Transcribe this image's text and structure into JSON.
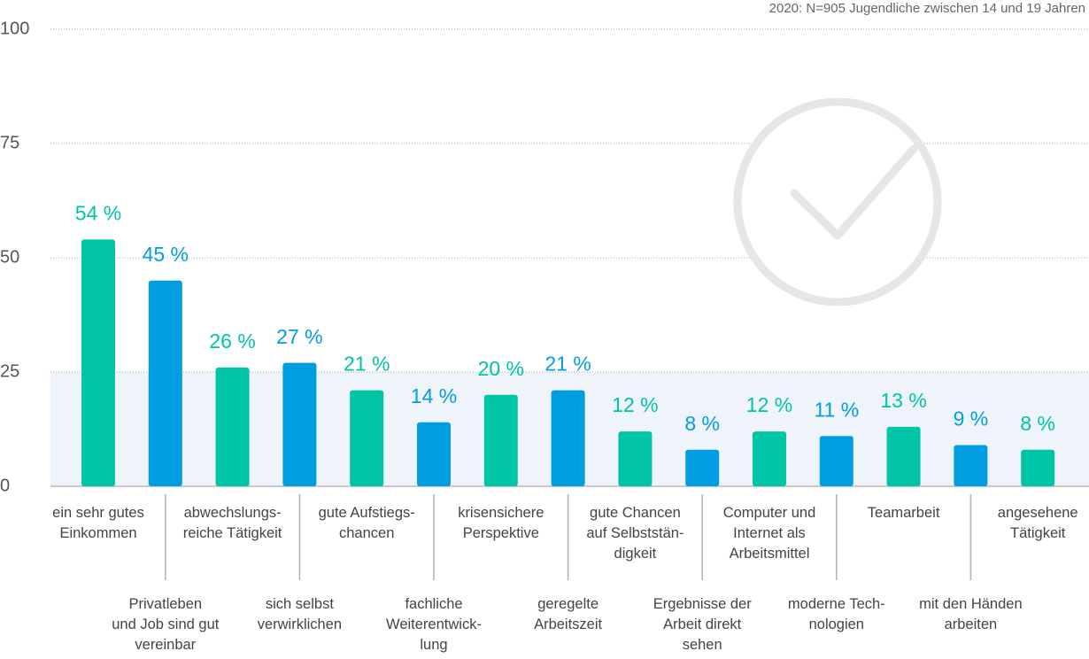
{
  "chart_data": {
    "type": "bar",
    "subtitle": "2020: N=905 Jugendliche zwischen 14 und 19 Jahren",
    "categories": [
      "ein sehr gutes\nEinkommen",
      "Privatleben\nund Job sind gut\nvereinbar",
      "abwechslungs-\nreiche Tätigkeit",
      "sich selbst\nverwirklichen",
      "gute Aufstiegs-\nchancen",
      "fachliche\nWeiterentwick-\nlung",
      "krisensichere\nPerspektive",
      "geregelte\nArbeitszeit",
      "gute Chancen\nauf Selbststän-\ndigkeit",
      "Ergebnisse der\nArbeit direkt\nsehen",
      "Computer und\nInternet als\nArbeitsmittel",
      "moderne Tech-\nnologien",
      "Teamarbeit",
      "mit den Händen\narbeiten",
      "angesehene\nTätigkeit"
    ],
    "values": [
      54,
      45,
      26,
      27,
      21,
      14,
      20,
      21,
      12,
      8,
      12,
      11,
      13,
      9,
      8
    ],
    "value_labels": [
      "54 %",
      "45 %",
      "26 %",
      "27 %",
      "21 %",
      "14 %",
      "20 %",
      "21 %",
      "12 %",
      "8 %",
      "12 %",
      "11 %",
      "13 %",
      "9 %",
      "8 %"
    ],
    "colors": [
      "#00c4a6",
      "#009ee0",
      "#00c4a6",
      "#009ee0",
      "#00c4a6",
      "#009ee0",
      "#00c4a6",
      "#009ee0",
      "#00c4a6",
      "#009ee0",
      "#00c4a6",
      "#009ee0",
      "#00c4a6",
      "#009ee0",
      "#00c4a6"
    ],
    "ylim": [
      0,
      100
    ],
    "yticks": [
      0,
      25,
      50,
      75,
      100
    ],
    "grid": true
  }
}
